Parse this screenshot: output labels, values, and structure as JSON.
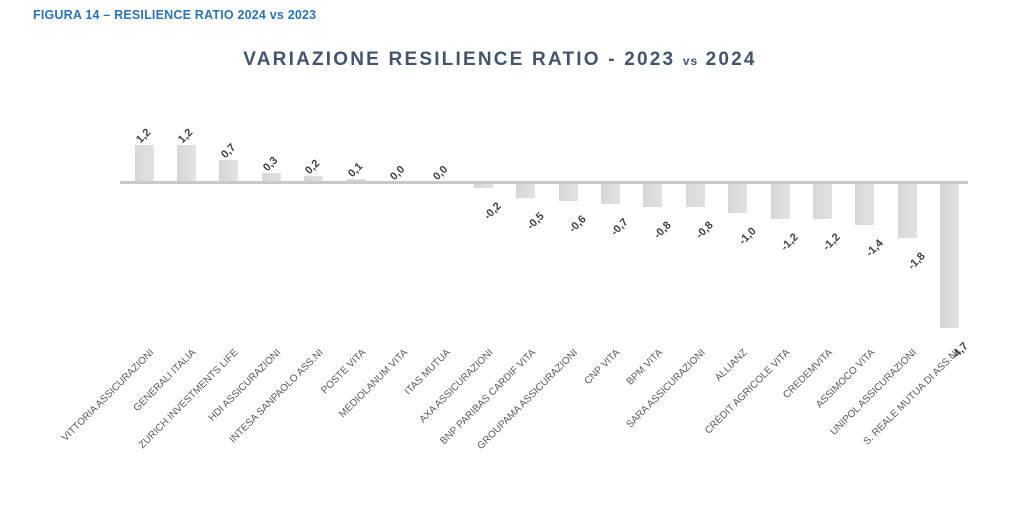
{
  "caption": "FIGURA 14 – RESILIENCE RATIO 2024 vs 2023",
  "header": {
    "title_main": "VARIAZIONE RESILIENCE RATIO - 2023",
    "title_vs": "vs",
    "title_year": "2024"
  },
  "chart_data": {
    "type": "bar",
    "title": "VARIAZIONE RESILIENCE RATIO - 2023 vs 2024",
    "categories": [
      "VITTORIA ASSICURAZIONI",
      "GENERALI ITALIA",
      "ZURICH INVESTMENTS LIFE",
      "HDI ASSICURAZIONI",
      "INTESA SANPAOLO ASS.NI",
      "POSTE VITA",
      "MEDIOLANUM VITA",
      "ITAS MUTUA",
      "AXA ASSICURAZIONI",
      "BNP PARIBAS CARDIF VITA",
      "GROUPAMA ASSICURAZIONI",
      "CNP VITA",
      "BPM VITA",
      "SARA ASSICURAZIONI",
      "ALLIANZ",
      "CRÉDIT AGRICOLE VITA",
      "CREDEMVITA",
      "ASSIMOCO VITA",
      "UNIPOL ASSICURAZIONI",
      "S. REALE MUTUA DI ASS.NI"
    ],
    "values": [
      1.2,
      1.2,
      0.7,
      0.3,
      0.2,
      0.1,
      0.0,
      0.0,
      -0.2,
      -0.5,
      -0.6,
      -0.7,
      -0.8,
      -0.8,
      -1.0,
      -1.2,
      -1.2,
      -1.4,
      -1.8,
      -4.7
    ],
    "value_labels": [
      "1,2",
      "1,2",
      "0,7",
      "0,3",
      "0,2",
      "0,1",
      "0,0",
      "0,0",
      "-0,2",
      "-0,5",
      "-0,6",
      "-0,7",
      "-0,8",
      "-0,8",
      "-1,0",
      "-1,2",
      "-1,2",
      "-1,4",
      "-1,8",
      "-4,7"
    ],
    "xlabel": "",
    "ylabel": "",
    "ylim": [
      -4.7,
      1.2
    ],
    "grid": false,
    "legend": false,
    "data_label_rotation_deg": 45,
    "category_label_rotation_deg": 45
  },
  "colors": {
    "caption_blue": "#2E74B5",
    "title_slate": "#44546A",
    "bar_fill": "#DCDCDC",
    "axis_line": "#C9C9C9",
    "value_label": "#3F3F3F",
    "category_label": "#595959",
    "background": "#FFFFFF"
  }
}
